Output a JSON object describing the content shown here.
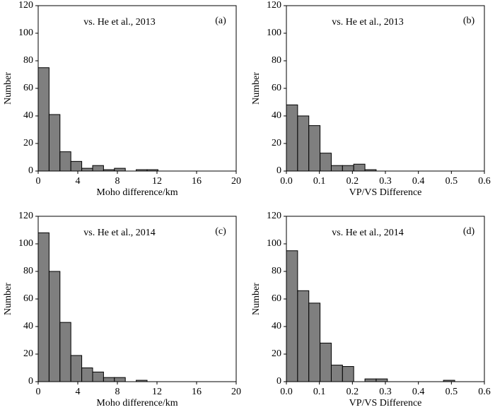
{
  "chart_data": [
    {
      "type": "histogram",
      "title": "vs. He et al., 2013",
      "panel_label": "(a)",
      "xlabel": "Moho difference/km",
      "ylabel": "Number",
      "bins": [
        0,
        1.1,
        2.2,
        3.3,
        4.4,
        5.5,
        6.6,
        7.7,
        8.8,
        9.9,
        11,
        12.1
      ],
      "values": [
        75,
        41,
        14,
        7,
        2,
        4,
        1,
        2,
        0,
        1,
        1
      ],
      "color": "#7f7f7f",
      "xlim": [
        0,
        20
      ],
      "xticks": [
        0,
        4,
        8,
        12,
        16,
        20
      ],
      "ylim": [
        0,
        120
      ],
      "yticks": [
        0,
        20,
        40,
        60,
        80,
        100,
        120
      ]
    },
    {
      "type": "histogram",
      "title": "vs. He et al., 2013",
      "panel_label": "(b)",
      "xlabel": "VP/VS Difference",
      "ylabel": "Number",
      "bins": [
        0,
        0.034,
        0.068,
        0.102,
        0.136,
        0.17,
        0.204,
        0.238,
        0.272
      ],
      "values": [
        48,
        40,
        33,
        13,
        4,
        4,
        5,
        1
      ],
      "color": "#7f7f7f",
      "xlim": [
        0,
        0.6
      ],
      "xticks": [
        {
          "value": 0,
          "label": "0.0"
        },
        0.1,
        0.2,
        0.3,
        0.4,
        0.5,
        0.6
      ],
      "ylim": [
        0,
        120
      ],
      "yticks": [
        0,
        20,
        40,
        60,
        80,
        100,
        120
      ]
    },
    {
      "type": "histogram",
      "title": "vs. He et al., 2014",
      "panel_label": "(c)",
      "xlabel": "Moho difference/km",
      "ylabel": "Number",
      "bins": [
        0,
        1.1,
        2.2,
        3.3,
        4.4,
        5.5,
        6.6,
        7.7,
        8.8,
        9.9,
        11
      ],
      "values": [
        108,
        80,
        43,
        19,
        10,
        7,
        3,
        3,
        0,
        1
      ],
      "color": "#7f7f7f",
      "xlim": [
        0,
        20
      ],
      "xticks": [
        0,
        4,
        8,
        12,
        16,
        20
      ],
      "ylim": [
        0,
        120
      ],
      "yticks": [
        0,
        20,
        40,
        60,
        80,
        100,
        120
      ]
    },
    {
      "type": "histogram",
      "title": "vs. He et al., 2014",
      "panel_label": "(d)",
      "xlabel": "VP/VS Difference",
      "ylabel": "Number",
      "bins": [
        0,
        0.034,
        0.068,
        0.102,
        0.136,
        0.17,
        0.204,
        0.238,
        0.272,
        0.306,
        0.34,
        0.374,
        0.408,
        0.442,
        0.476,
        0.51
      ],
      "values": [
        95,
        66,
        57,
        28,
        12,
        11,
        0,
        2,
        2,
        0,
        0,
        0,
        0,
        0,
        1
      ],
      "color": "#7f7f7f",
      "xlim": [
        0,
        0.6
      ],
      "xticks": [
        {
          "value": 0,
          "label": "0.0"
        },
        0.1,
        0.2,
        0.3,
        0.4,
        0.5,
        0.6
      ],
      "ylim": [
        0,
        120
      ],
      "yticks": [
        0,
        20,
        40,
        60,
        80,
        100,
        120
      ]
    }
  ]
}
